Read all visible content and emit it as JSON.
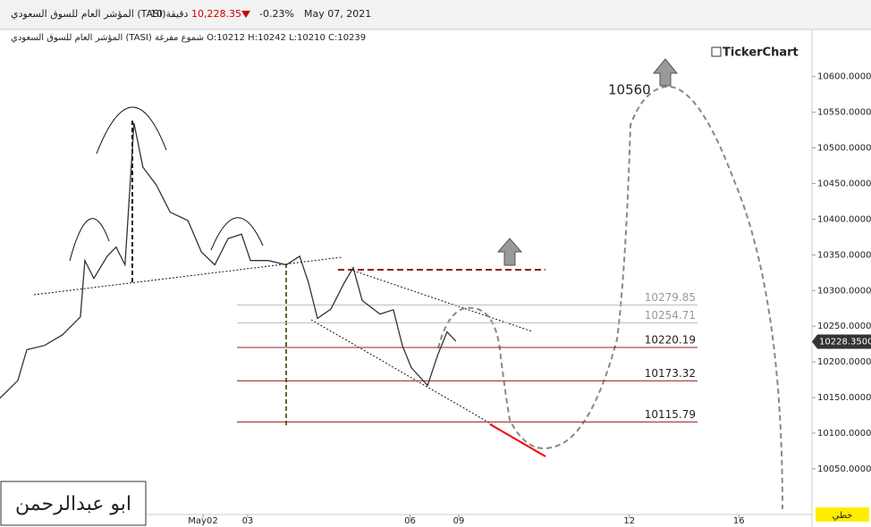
{
  "chart_data": {
    "type": "line",
    "title": "المؤشر العام للسوق السعودي (TASI)",
    "interval": "10 دقيقة",
    "last_price": "10,228.35",
    "change": "-0.23%",
    "date": "May 07, 2021",
    "subtitle": "المؤشر العام للسوق السعودي (TASI) شموع مفرغة O:10212  H:10242  L:10210  C:10239",
    "brand": "TickerChart",
    "author": "ابو عبدالرحمن",
    "chart_style": "خطي",
    "target_label": "10560",
    "current": {
      "value": 10228.35,
      "label": "10228.3500"
    },
    "series": [
      {
        "name": "TASI",
        "color": "#333333",
        "x": [
          0,
          4.4,
          6.6,
          11,
          15.4,
          19.8,
          20.9,
          23.1,
          26.4,
          28.6,
          30.8,
          32.6,
          33,
          35.2,
          38.5,
          41.9,
          46.3,
          49.6,
          52.9,
          56.2,
          59.5,
          61.7,
          66.1,
          70.5,
          73.8,
          76,
          78.2,
          81.5,
          84.8,
          87,
          89.2,
          93.6,
          96.9,
          99.1,
          101.3,
          105.3,
          107.9,
          110.1,
          112.3
        ],
        "values": [
          10149,
          10174,
          10217,
          10223,
          10238,
          10263,
          10342,
          10317,
          10348,
          10361,
          10336,
          10498,
          10535,
          10473,
          10448,
          10410,
          10398,
          10354,
          10336,
          10373,
          10379,
          10342,
          10342,
          10336,
          10348,
          10311,
          10261,
          10274,
          10311,
          10332,
          10286,
          10267,
          10273,
          10223,
          10192,
          10167,
          10211,
          10242,
          10229
        ]
      }
    ],
    "levels": [
      {
        "value": 10279.85,
        "color": "#bbbbbb"
      },
      {
        "value": 10254.71,
        "color": "#bbbbbb"
      },
      {
        "value": 10220.19,
        "color": "#9b1c1c"
      },
      {
        "value": 10173.32,
        "color": "#9b1c1c"
      },
      {
        "value": 10115.79,
        "color": "#9b1c1c"
      }
    ],
    "xlim": [
      0,
      200
    ],
    "xticks": [
      {
        "value": 50,
        "label": "May02"
      },
      {
        "value": 61,
        "label": "03"
      },
      {
        "value": 101,
        "label": "06"
      },
      {
        "value": 113,
        "label": "09"
      },
      {
        "value": 155,
        "label": "12"
      },
      {
        "value": 182,
        "label": "16"
      }
    ],
    "ylim": [
      9986,
      10666
    ],
    "yticks": [
      {
        "value": 10050,
        "label": "10050.0000"
      },
      {
        "value": 10100,
        "label": "10100.0000"
      },
      {
        "value": 10150,
        "label": "10150.0000"
      },
      {
        "value": 10200,
        "label": "10200.0000"
      },
      {
        "value": 10250,
        "label": "10250.0000"
      },
      {
        "value": 10300,
        "label": "10300.0000"
      },
      {
        "value": 10350,
        "label": "10350.0000"
      },
      {
        "value": 10400,
        "label": "10400.0000"
      },
      {
        "value": 10450,
        "label": "10450.0000"
      },
      {
        "value": 10500,
        "label": "10500.0000"
      },
      {
        "value": 10550,
        "label": "10550.0000"
      },
      {
        "value": 10600,
        "label": "10600.0000"
      }
    ]
  }
}
